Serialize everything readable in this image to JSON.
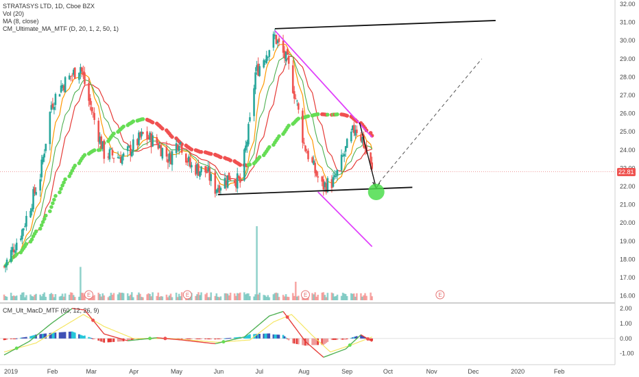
{
  "legend": {
    "title": "STRATASYS LTD, 1D, Cboe BZX",
    "vol": "Vol (20)",
    "ma": "MA (8, close)",
    "cm_ma": "CM_Ultimate_MA_MTF (D, 20, 1, 2, 50, 1)",
    "macd": "CM_Ult_MacD_MTF (60, 12, 26, 9)"
  },
  "last_price": "22.81",
  "colors": {
    "up": "#26a69a",
    "down": "#ef5350",
    "ma_green": "#4caf50",
    "ma_orange": "#ff9800",
    "ma_red": "#e53935",
    "trend_black": "#111111",
    "trend_magenta": "#e040fb",
    "macd_pos_strong": "#26c6da",
    "macd_pos_weak": "#3f51b5",
    "macd_neg_strong": "#e53935",
    "macd_neg_weak": "#ef9a9a",
    "target_circle": "#4cdd4c"
  },
  "chart_data": [
    {
      "type": "candlestick",
      "title": "STRATASYS LTD, 1D, Cboe BZX",
      "x": [
        "2019-01-01",
        "2020-02-10"
      ],
      "x_tick_labels": [
        "2019",
        "Feb",
        "Mar",
        "Apr",
        "May",
        "Jun",
        "Jul",
        "Aug",
        "Sep",
        "Oct",
        "Nov",
        "Dec",
        "2020",
        "Feb"
      ],
      "y_tick_labels": [
        "16.00",
        "17.00",
        "18.00",
        "19.00",
        "20.00",
        "21.00",
        "22.00",
        "23.00",
        "24.00",
        "25.00",
        "26.00",
        "27.00",
        "28.00",
        "29.00",
        "30.00",
        "31.00",
        "32.00"
      ],
      "ylim": [
        16,
        32
      ],
      "keypoints": [
        {
          "x": "2019-01-02",
          "close": 17.6
        },
        {
          "x": "2019-01-15",
          "close": 19.6
        },
        {
          "x": "2019-01-28",
          "close": 22.6
        },
        {
          "x": "2019-02-05",
          "close": 26.5
        },
        {
          "x": "2019-02-12",
          "close": 27.5
        },
        {
          "x": "2019-02-26",
          "close": 28.6
        },
        {
          "x": "2019-03-04",
          "close": 26.7
        },
        {
          "x": "2019-03-15",
          "close": 23.8
        },
        {
          "x": "2019-03-29",
          "close": 23.6
        },
        {
          "x": "2019-04-12",
          "close": 24.8
        },
        {
          "x": "2019-04-22",
          "close": 24.4
        },
        {
          "x": "2019-05-01",
          "close": 23.5
        },
        {
          "x": "2019-05-08",
          "close": 24.6
        },
        {
          "x": "2019-05-16",
          "close": 23.1
        },
        {
          "x": "2019-05-28",
          "close": 22.8
        },
        {
          "x": "2019-06-03",
          "close": 21.9
        },
        {
          "x": "2019-06-14",
          "close": 22.6
        },
        {
          "x": "2019-06-21",
          "close": 22.2
        },
        {
          "x": "2019-06-28",
          "close": 25.5
        },
        {
          "x": "2019-07-02",
          "close": 28.2
        },
        {
          "x": "2019-07-09",
          "close": 29.2
        },
        {
          "x": "2019-07-16",
          "close": 30.2
        },
        {
          "x": "2019-07-25",
          "close": 28.8
        },
        {
          "x": "2019-08-01",
          "close": 26.5
        },
        {
          "x": "2019-08-06",
          "close": 24.3
        },
        {
          "x": "2019-08-14",
          "close": 22.8
        },
        {
          "x": "2019-08-19",
          "close": 22.0
        },
        {
          "x": "2019-08-28",
          "close": 22.3
        },
        {
          "x": "2019-09-05",
          "close": 24.0
        },
        {
          "x": "2019-09-12",
          "close": 25.3
        },
        {
          "x": "2019-09-17",
          "close": 24.6
        },
        {
          "x": "2019-09-24",
          "close": 22.8
        }
      ],
      "volume_peaks": [
        {
          "x": "2019-02-26",
          "value": 0.45
        },
        {
          "x": "2019-06-25",
          "value": 0.08
        },
        {
          "x": "2019-07-03",
          "value": 1.0
        },
        {
          "x": "2019-07-31",
          "value": 0.25
        }
      ],
      "earnings_markers": [
        "2019-03-04",
        "2019-05-14",
        "2019-08-07",
        "2019-11-12"
      ],
      "earnings_label": "E",
      "trendlines": [
        {
          "name": "upper-channel",
          "from": [
            "2019-07-16",
            30.65
          ],
          "to": [
            "2019-12-22",
            31.1
          ]
        },
        {
          "name": "lower-support",
          "from": [
            "2019-06-05",
            21.55
          ],
          "to": [
            "2019-10-23",
            21.95
          ]
        },
        {
          "name": "descending-top",
          "from": [
            "2019-07-16",
            30.55
          ],
          "to": [
            "2019-09-24",
            24.7
          ]
        },
        {
          "name": "descending-bottom",
          "from": [
            "2019-08-16",
            21.7
          ],
          "to": [
            "2019-09-24",
            18.7
          ]
        },
        {
          "name": "projection-arrow",
          "from": [
            "2019-09-15",
            25.5
          ],
          "to": [
            "2019-09-27",
            21.9
          ]
        },
        {
          "name": "projected-path-dashed",
          "from": [
            "2019-09-29",
            22.2
          ],
          "to": [
            "2019-12-12",
            29.0
          ]
        }
      ],
      "target_zone": {
        "x": "2019-09-27",
        "y": 21.7
      }
    },
    {
      "type": "line",
      "name": "macd",
      "title": "CM_Ult_MacD_MTF (60, 12, 26, 9)",
      "y_tick_labels": [
        "2.00",
        "1.00",
        "0.00",
        "-1.00"
      ],
      "ylim": [
        -1.6,
        2.2
      ],
      "series": [
        {
          "name": "macd",
          "points": [
            [
              "2019-01-02",
              -1.1
            ],
            [
              "2019-01-20",
              -0.2
            ],
            [
              "2019-02-05",
              1.0
            ],
            [
              "2019-02-20",
              2.0
            ],
            [
              "2019-03-01",
              1.9
            ],
            [
              "2019-03-15",
              0.3
            ],
            [
              "2019-04-01",
              -0.15
            ],
            [
              "2019-04-22",
              0.05
            ],
            [
              "2019-05-10",
              -0.1
            ],
            [
              "2019-06-03",
              -0.35
            ],
            [
              "2019-06-24",
              0.1
            ],
            [
              "2019-07-12",
              1.5
            ],
            [
              "2019-07-22",
              1.8
            ],
            [
              "2019-08-07",
              -0.2
            ],
            [
              "2019-08-20",
              -1.25
            ],
            [
              "2019-09-05",
              -0.7
            ],
            [
              "2019-09-16",
              0.25
            ],
            [
              "2019-09-24",
              -0.2
            ]
          ]
        },
        {
          "name": "signal",
          "points": [
            [
              "2019-01-02",
              -0.9
            ],
            [
              "2019-01-25",
              -0.3
            ],
            [
              "2019-02-10",
              0.6
            ],
            [
              "2019-02-28",
              1.6
            ],
            [
              "2019-03-15",
              0.8
            ],
            [
              "2019-04-05",
              0.0
            ],
            [
              "2019-05-01",
              0.0
            ],
            [
              "2019-06-05",
              -0.25
            ],
            [
              "2019-06-28",
              -0.1
            ],
            [
              "2019-07-15",
              1.1
            ],
            [
              "2019-07-28",
              1.6
            ],
            [
              "2019-08-12",
              0.2
            ],
            [
              "2019-08-25",
              -0.9
            ],
            [
              "2019-09-10",
              -0.4
            ],
            [
              "2019-09-24",
              0.1
            ]
          ]
        }
      ],
      "histogram_sign_by_month": {
        "Jan": 1,
        "Feb": 1,
        "Mar": -1,
        "Apr": 1,
        "May": -1,
        "Jun": 1,
        "Jul": 1,
        "Aug": -1,
        "Sep": 1
      }
    }
  ]
}
